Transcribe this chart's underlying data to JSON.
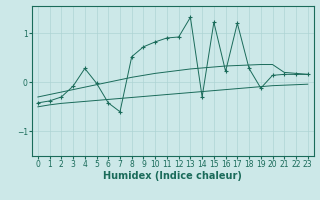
{
  "xlabel": "Humidex (Indice chaleur)",
  "bg_color": "#cce8e8",
  "line_color": "#1a6b5a",
  "x_main": [
    0,
    1,
    2,
    3,
    4,
    5,
    6,
    7,
    8,
    9,
    10,
    11,
    12,
    13,
    14,
    15,
    16,
    17,
    18,
    19,
    20,
    21,
    22,
    23
  ],
  "y_main": [
    -0.42,
    -0.38,
    -0.3,
    -0.08,
    0.28,
    -0.02,
    -0.42,
    -0.6,
    0.52,
    0.72,
    0.82,
    0.9,
    0.92,
    1.32,
    -0.3,
    1.22,
    0.22,
    1.2,
    0.28,
    -0.12,
    0.14,
    0.16,
    0.16,
    0.16
  ],
  "x_upper": [
    0,
    1,
    2,
    3,
    4,
    5,
    6,
    7,
    8,
    9,
    10,
    11,
    12,
    13,
    14,
    15,
    16,
    17,
    18,
    19,
    20,
    21,
    22,
    23
  ],
  "y_upper": [
    -0.3,
    -0.25,
    -0.2,
    -0.15,
    -0.1,
    -0.05,
    0.0,
    0.05,
    0.1,
    0.14,
    0.18,
    0.21,
    0.24,
    0.27,
    0.29,
    0.31,
    0.33,
    0.34,
    0.35,
    0.36,
    0.36,
    0.2,
    0.18,
    0.16
  ],
  "x_lower": [
    0,
    1,
    2,
    3,
    4,
    5,
    6,
    7,
    8,
    9,
    10,
    11,
    12,
    13,
    14,
    15,
    16,
    17,
    18,
    19,
    20,
    21,
    22,
    23
  ],
  "y_lower": [
    -0.5,
    -0.46,
    -0.43,
    -0.41,
    -0.39,
    -0.37,
    -0.35,
    -0.33,
    -0.31,
    -0.29,
    -0.27,
    -0.25,
    -0.23,
    -0.21,
    -0.19,
    -0.17,
    -0.15,
    -0.13,
    -0.11,
    -0.09,
    -0.07,
    -0.06,
    -0.05,
    -0.04
  ],
  "xlim": [
    -0.5,
    23.5
  ],
  "ylim": [
    -1.5,
    1.55
  ],
  "yticks": [
    -1,
    0,
    1
  ],
  "xticks": [
    0,
    1,
    2,
    3,
    4,
    5,
    6,
    7,
    8,
    9,
    10,
    11,
    12,
    13,
    14,
    15,
    16,
    17,
    18,
    19,
    20,
    21,
    22,
    23
  ],
  "grid_color": "#aed4d4",
  "tick_fontsize": 5.5,
  "label_fontsize": 7
}
